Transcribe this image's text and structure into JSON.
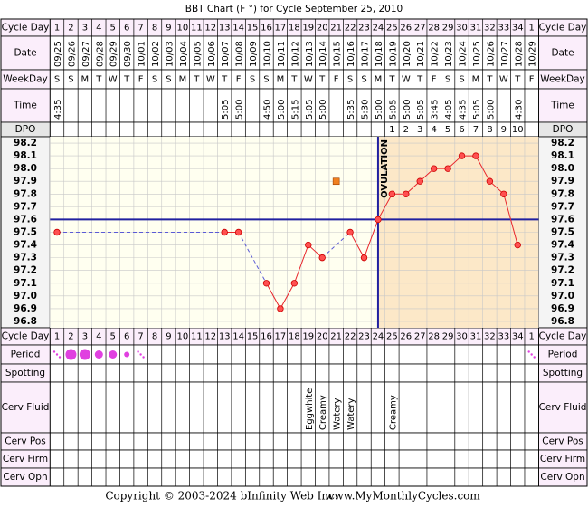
{
  "title": "BBT Chart (F °) for Cycle September 25, 2010",
  "row_labels": {
    "cycle_day": "Cycle Day",
    "date": "Date",
    "weekday": "WeekDay",
    "time": "Time",
    "dpo": "DPO",
    "period": "Period",
    "spotting": "Spotting",
    "cerv_fluid": "Cerv Fluid",
    "cerv_pos": "Cerv Pos",
    "cerv_firm": "Cerv Firm",
    "cerv_opn": "Cerv Opn"
  },
  "cycle_days": [
    1,
    2,
    3,
    4,
    5,
    6,
    7,
    8,
    9,
    10,
    11,
    12,
    13,
    14,
    15,
    16,
    17,
    18,
    19,
    20,
    21,
    22,
    23,
    24,
    25,
    26,
    27,
    28,
    29,
    30,
    31,
    32,
    33,
    34,
    1
  ],
  "dates": [
    "09/25",
    "09/26",
    "09/27",
    "09/28",
    "09/29",
    "09/30",
    "10/01",
    "10/02",
    "10/03",
    "10/04",
    "10/05",
    "10/06",
    "10/07",
    "10/08",
    "10/09",
    "10/10",
    "10/11",
    "10/12",
    "10/13",
    "10/14",
    "10/15",
    "10/16",
    "10/17",
    "10/18",
    "10/19",
    "10/20",
    "10/21",
    "10/22",
    "10/23",
    "10/24",
    "10/25",
    "10/26",
    "10/27",
    "10/28",
    "10/29"
  ],
  "weekdays": [
    "S",
    "S",
    "M",
    "T",
    "W",
    "T",
    "F",
    "S",
    "S",
    "M",
    "T",
    "W",
    "T",
    "F",
    "S",
    "S",
    "M",
    "T",
    "W",
    "T",
    "F",
    "S",
    "S",
    "M",
    "T",
    "W",
    "T",
    "F",
    "S",
    "S",
    "M",
    "T",
    "W",
    "T",
    "F"
  ],
  "times": [
    "4:35",
    null,
    null,
    null,
    null,
    null,
    null,
    null,
    null,
    null,
    null,
    null,
    "5:05",
    "5:00",
    null,
    "4:50",
    "5:00",
    "5:15",
    "5:05",
    "5:00",
    null,
    "5:35",
    "5:30",
    "5:00",
    "5:05",
    "5:00",
    "5:05",
    "3:45",
    "4:05",
    "4:35",
    "5:05",
    "5:00",
    null,
    "4:30",
    null
  ],
  "dpo": [
    null,
    null,
    null,
    null,
    null,
    null,
    null,
    null,
    null,
    null,
    null,
    null,
    null,
    null,
    null,
    null,
    null,
    null,
    null,
    null,
    null,
    null,
    null,
    null,
    1,
    2,
    3,
    4,
    5,
    6,
    7,
    8,
    9,
    10,
    null
  ],
  "period_levels": [
    1,
    4,
    4,
    3,
    3,
    2,
    1,
    null,
    null,
    null,
    null,
    null,
    null,
    null,
    null,
    null,
    null,
    null,
    null,
    null,
    null,
    null,
    null,
    null,
    null,
    null,
    null,
    null,
    null,
    null,
    null,
    null,
    null,
    null,
    1
  ],
  "cerv_fluid": [
    null,
    null,
    null,
    null,
    null,
    null,
    null,
    null,
    null,
    null,
    null,
    null,
    null,
    null,
    null,
    null,
    null,
    null,
    "Eggwhite",
    "Creamy",
    "Watery",
    "Watery",
    null,
    null,
    "Creamy",
    null,
    null,
    null,
    null,
    null,
    null,
    null,
    null,
    null,
    null
  ],
  "chart_data": {
    "type": "line",
    "values": [
      97.5,
      null,
      null,
      null,
      null,
      null,
      null,
      null,
      null,
      null,
      null,
      null,
      97.5,
      97.5,
      null,
      97.1,
      96.9,
      97.1,
      97.4,
      97.3,
      null,
      97.5,
      97.3,
      97.6,
      97.8,
      97.8,
      97.9,
      98.0,
      98.0,
      98.1,
      98.1,
      97.9,
      97.8,
      97.4,
      null
    ],
    "excluded_values": [
      null,
      null,
      null,
      null,
      null,
      null,
      null,
      null,
      null,
      null,
      null,
      null,
      null,
      null,
      null,
      null,
      null,
      null,
      null,
      null,
      97.9,
      null,
      null,
      null,
      null,
      null,
      null,
      null,
      null,
      null,
      null,
      null,
      null,
      null,
      null
    ],
    "color": "#e8262c",
    "connector_color": "#5a5ad6",
    "ylim": [
      96.75,
      98.25
    ],
    "yticks": [
      {
        "value": 98.2,
        "label": "98.2"
      },
      98.1,
      {
        "value": 98.0,
        "label": "98.0"
      },
      97.9,
      97.8,
      97.7,
      97.6,
      97.5,
      97.4,
      97.3,
      97.2,
      97.1,
      {
        "value": 97.0,
        "label": "97.0"
      },
      96.9,
      96.8
    ],
    "coverline": 97.6,
    "ovulation_day": 24,
    "ovulation_label": "OVULATION",
    "grid": true
  },
  "footer": {
    "copyright": "Copyright © 2003-2024 bInfinity Web Inc.",
    "site": "www.MyMonthlyCycles.com"
  }
}
